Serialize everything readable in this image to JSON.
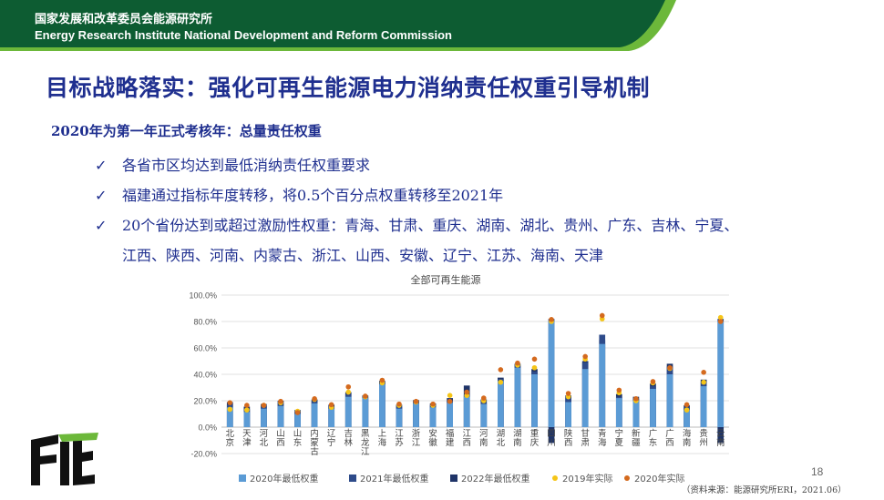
{
  "header": {
    "org_cn": "国家发展和改革委员会能源研究所",
    "org_en": "Energy Research Institute National Development and Reform Commission",
    "bg_color": "#0d5c32",
    "accent_color": "#6cb83a"
  },
  "slide": {
    "title": "目标战略落实：强化可再生能源电力消纳责任权重引导机制",
    "subtitle": "2020年为第一年正式考核年：总量责任权重",
    "bullets": [
      "各省市区均达到最低消纳责任权重要求",
      "福建通过指标年度转移，将0.5个百分点权重转移至2021年",
      "20个省份达到或超过激励性权重：青海、甘肃、重庆、湖南、湖北、贵州、广东、吉林、宁夏、",
      "江西、陕西、河南、内蒙古、浙江、山西、安徽、辽宁、江苏、海南、天津"
    ],
    "bullet_icon": "checkmark-icon",
    "logo_icon": "institute-logo-icon",
    "source": "（资料来源：能源研究所ERI，2021.06）",
    "page_number": "18"
  },
  "chart_data": {
    "type": "bar",
    "title": "全部可再生能源",
    "ylim": [
      -20,
      100
    ],
    "yticks": [
      "100.0%",
      "80.0%",
      "60.0%",
      "40.0%",
      "20.0%",
      "0.0%",
      "-20.0%"
    ],
    "categories": [
      "北京",
      "天津",
      "河北",
      "山西",
      "山东",
      "内蒙古",
      "辽宁",
      "吉林",
      "黑龙江",
      "上海",
      "江苏",
      "浙江",
      "安徽",
      "福建",
      "江西",
      "河南",
      "湖北",
      "湖南",
      "重庆",
      "四川",
      "陕西",
      "甘肃",
      "青海",
      "宁夏",
      "新疆",
      "广东",
      "广西",
      "海南",
      "贵州",
      "云南"
    ],
    "series": [
      {
        "name": "2020年最低权重",
        "kind": "bar",
        "color": "#5b9bd5",
        "values": [
          15,
          11.5,
          14,
          16,
          10,
          18,
          14,
          23,
          22,
          32.5,
          14,
          18,
          15,
          18.5,
          23,
          17.5,
          35,
          45,
          40,
          80,
          19,
          44,
          63,
          22,
          20,
          29,
          40,
          13,
          31,
          80
        ]
      },
      {
        "name": "2021年最低权重",
        "kind": "bar",
        "color": "#2e4b8a",
        "values": [
          17,
          13.5,
          16,
          18,
          11.5,
          19.5,
          15.5,
          25,
          23,
          33.5,
          15.5,
          19,
          16.5,
          20,
          24.5,
          19,
          36.5,
          46.5,
          42,
          82,
          22,
          49,
          70,
          23,
          21.5,
          31,
          46,
          15,
          34,
          82
        ]
      },
      {
        "name": "2022年最低权重",
        "kind": "bar",
        "color": "#1f3468",
        "values": [
          19,
          15.5,
          17.5,
          20,
          13,
          21,
          17,
          26.5,
          24,
          35,
          17,
          20.5,
          18,
          22,
          31.5,
          21,
          37.5,
          48,
          44,
          -12,
          24,
          50,
          66,
          25,
          23,
          33,
          48,
          16.5,
          36,
          -12
        ]
      },
      {
        "name": "2019年实际",
        "kind": "point",
        "color": "#f5c518",
        "values": [
          13.5,
          13,
          16.5,
          18.5,
          12,
          21,
          15,
          26.5,
          23,
          33.5,
          16.5,
          19,
          16.5,
          24,
          24,
          20,
          34,
          47,
          45,
          80,
          23,
          51.5,
          82,
          26,
          20,
          33.5,
          44.5,
          13,
          34,
          83
        ]
      },
      {
        "name": "2020年实际",
        "kind": "point",
        "color": "#d46a1e",
        "values": [
          18.5,
          16.5,
          16.5,
          19.5,
          11,
          21.5,
          17,
          30.5,
          23.5,
          35.5,
          17.5,
          19.5,
          17.5,
          19.5,
          26.5,
          22,
          43.5,
          48.5,
          51.5,
          81.5,
          25.5,
          53.5,
          84.5,
          28,
          21.5,
          34.5,
          45,
          17,
          41.5,
          80
        ]
      }
    ]
  }
}
